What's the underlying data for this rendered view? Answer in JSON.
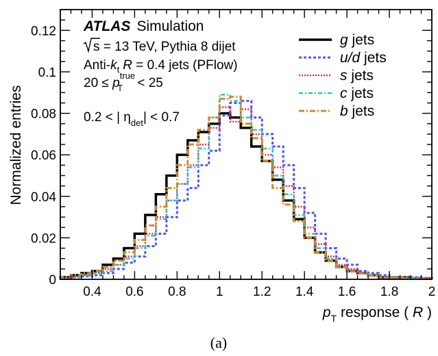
{
  "chart_data": {
    "type": "step",
    "xlabel": {
      "prefix": "p",
      "sub": "T",
      "rest": " response ( ",
      "var": "R",
      "close": " )"
    },
    "ylabel": "Normalized entries",
    "xlim": [
      0.25,
      2.0
    ],
    "ylim": [
      0,
      0.13
    ],
    "xticks": [
      0.4,
      0.6,
      0.8,
      1,
      1.2,
      1.4,
      1.6,
      1.8,
      2
    ],
    "xtick_labels": [
      "0.4",
      "0.6",
      "0.8",
      "1",
      "1.2",
      "1.4",
      "1.6",
      "1.8",
      "2"
    ],
    "yticks": [
      0,
      0.02,
      0.04,
      0.06,
      0.08,
      0.1,
      0.12
    ],
    "ytick_labels": [
      "0",
      "0.02",
      "0.04",
      "0.06",
      "0.08",
      "0.1",
      "0.12"
    ],
    "grid": false,
    "legend_position": "top-right",
    "bin_edges": [
      0.25,
      0.3,
      0.35,
      0.4,
      0.45,
      0.5,
      0.55,
      0.6,
      0.65,
      0.7,
      0.75,
      0.8,
      0.85,
      0.9,
      0.95,
      1.0,
      1.05,
      1.1,
      1.15,
      1.2,
      1.25,
      1.3,
      1.35,
      1.4,
      1.45,
      1.5,
      1.55,
      1.6,
      1.65,
      1.7,
      1.75,
      1.8,
      1.85,
      1.9,
      1.95,
      2.0
    ],
    "series": [
      {
        "name_var": "g",
        "name_rest": " jets",
        "color": "#000000",
        "dash": "",
        "width": 3.5,
        "values": [
          0.001,
          0.002,
          0.003,
          0.004,
          0.007,
          0.01,
          0.015,
          0.022,
          0.031,
          0.041,
          0.05,
          0.06,
          0.067,
          0.071,
          0.075,
          0.08,
          0.078,
          0.073,
          0.064,
          0.057,
          0.048,
          0.038,
          0.029,
          0.02,
          0.013,
          0.009,
          0.006,
          0.004,
          0.003,
          0.002,
          0.001,
          0.001,
          0.001,
          0.0005,
          0.0005
        ]
      },
      {
        "name_var": "u/d",
        "name_rest": " jets",
        "color": "#5454f0",
        "dash": "4,3",
        "width": 3,
        "values": [
          0.0005,
          0.001,
          0.0015,
          0.002,
          0.003,
          0.005,
          0.008,
          0.011,
          0.016,
          0.022,
          0.03,
          0.038,
          0.044,
          0.055,
          0.062,
          0.079,
          0.085,
          0.086,
          0.078,
          0.07,
          0.064,
          0.055,
          0.044,
          0.032,
          0.022,
          0.015,
          0.01,
          0.007,
          0.004,
          0.003,
          0.002,
          0.001,
          0.001,
          0.001,
          0.0005
        ]
      },
      {
        "name_var": "s",
        "name_rest": " jets",
        "color": "#d2285a",
        "dash": "2,2",
        "width": 2.5,
        "values": [
          0.0005,
          0.001,
          0.002,
          0.003,
          0.005,
          0.007,
          0.011,
          0.016,
          0.022,
          0.03,
          0.038,
          0.046,
          0.055,
          0.065,
          0.073,
          0.083,
          0.076,
          0.082,
          0.07,
          0.06,
          0.054,
          0.045,
          0.035,
          0.025,
          0.017,
          0.011,
          0.007,
          0.005,
          0.003,
          0.002,
          0.001,
          0.001,
          0.0005,
          0.0005,
          0.0005
        ]
      },
      {
        "name_var": "c",
        "name_rest": " jets",
        "color": "#2ec2c2",
        "dash": "6,3,2,3",
        "width": 2.5,
        "values": [
          0.0005,
          0.001,
          0.002,
          0.003,
          0.004,
          0.007,
          0.01,
          0.015,
          0.021,
          0.029,
          0.038,
          0.046,
          0.054,
          0.063,
          0.078,
          0.089,
          0.086,
          0.078,
          0.072,
          0.063,
          0.05,
          0.041,
          0.031,
          0.022,
          0.015,
          0.01,
          0.006,
          0.004,
          0.003,
          0.002,
          0.001,
          0.001,
          0.0005,
          0.0005,
          0.0005
        ]
      },
      {
        "name_var": "b",
        "name_rest": " jets",
        "color": "#d48a28",
        "dash": "8,3,2,3",
        "width": 3,
        "values": [
          0.001,
          0.002,
          0.003,
          0.004,
          0.006,
          0.009,
          0.013,
          0.019,
          0.026,
          0.035,
          0.044,
          0.055,
          0.065,
          0.072,
          0.078,
          0.087,
          0.088,
          0.075,
          0.068,
          0.057,
          0.044,
          0.036,
          0.028,
          0.02,
          0.013,
          0.009,
          0.006,
          0.004,
          0.003,
          0.002,
          0.001,
          0.001,
          0.001,
          0.0005,
          0.0005
        ]
      }
    ],
    "annotations": {
      "atlas": "ATLAS",
      "atlas_suffix": "Simulation",
      "energy_sqrt": "s",
      "energy_rest": " = 13 TeV, Pythia 8 dijet",
      "jets_prefix": "Anti-",
      "jets_k": "k",
      "jets_t": "t",
      "jets_R": "R",
      "jets_rest": " = 0.4 jets (PFlow)",
      "pt_low": "20 ≤ ",
      "pt_p": "p",
      "pt_sup": "true",
      "pt_sub": "T",
      "pt_high": " < 25",
      "eta_left": "0.2 < | η",
      "eta_sub": "det",
      "eta_right": "| < 0.7"
    }
  },
  "caption": "(a)"
}
